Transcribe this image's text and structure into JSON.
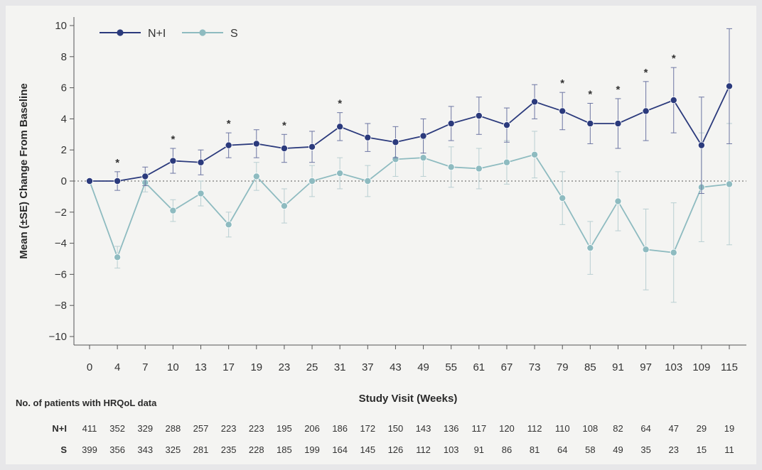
{
  "chart_data": {
    "type": "line",
    "xlabel": "Study Visit (Weeks)",
    "ylabel": "Mean (±SE) Change From Baseline",
    "ylim": [
      -10,
      10
    ],
    "yticks": [
      10,
      8,
      6,
      4,
      2,
      0,
      -2,
      -4,
      -6,
      -8,
      -10
    ],
    "categories": [
      "0",
      "4",
      "7",
      "10",
      "13",
      "17",
      "19",
      "23",
      "25",
      "31",
      "37",
      "43",
      "49",
      "55",
      "61",
      "67",
      "73",
      "79",
      "85",
      "91",
      "97",
      "103",
      "109",
      "115"
    ],
    "legend_position": "top-left",
    "reference_line": 0,
    "significance_marker": "*",
    "significant_at": [
      "4",
      "10",
      "17",
      "23",
      "31",
      "79",
      "85",
      "91",
      "97",
      "103"
    ],
    "series": [
      {
        "name": "N+I",
        "color": "#2b3a7c",
        "values": [
          0.0,
          0.0,
          0.3,
          1.3,
          1.2,
          2.3,
          2.4,
          2.1,
          2.2,
          3.5,
          2.8,
          2.5,
          2.9,
          3.7,
          4.2,
          3.6,
          5.1,
          4.5,
          3.7,
          3.7,
          4.5,
          5.2,
          2.3,
          6.1
        ],
        "se": [
          0.0,
          0.6,
          0.6,
          0.8,
          0.8,
          0.8,
          0.9,
          0.9,
          1.0,
          0.9,
          0.9,
          1.0,
          1.1,
          1.1,
          1.2,
          1.1,
          1.1,
          1.2,
          1.3,
          1.6,
          1.9,
          2.1,
          3.1,
          3.7
        ]
      },
      {
        "name": "S",
        "color": "#8ebbc0",
        "values": [
          0.0,
          -4.9,
          -0.1,
          -1.9,
          -0.8,
          -2.8,
          0.3,
          -1.6,
          0.0,
          0.5,
          0.0,
          1.4,
          1.5,
          0.9,
          0.8,
          1.2,
          1.7,
          -1.1,
          -4.3,
          -1.3,
          -4.4,
          -4.6,
          -0.4,
          -0.2
        ],
        "se": [
          0.0,
          0.7,
          0.6,
          0.7,
          0.8,
          0.8,
          0.9,
          1.1,
          1.0,
          1.0,
          1.0,
          1.1,
          1.2,
          1.3,
          1.3,
          1.4,
          1.5,
          1.7,
          1.7,
          1.9,
          2.6,
          3.2,
          3.5,
          3.9
        ]
      }
    ]
  },
  "table": {
    "title": "No. of patients with HRQoL data",
    "rows": [
      {
        "name": "N+I",
        "values": [
          "411",
          "352",
          "329",
          "288",
          "257",
          "223",
          "223",
          "195",
          "206",
          "186",
          "172",
          "150",
          "143",
          "136",
          "117",
          "120",
          "112",
          "110",
          "108",
          "82",
          "64",
          "47",
          "29",
          "19"
        ]
      },
      {
        "name": "S",
        "values": [
          "399",
          "356",
          "343",
          "325",
          "281",
          "235",
          "228",
          "185",
          "199",
          "164",
          "145",
          "126",
          "112",
          "103",
          "91",
          "86",
          "81",
          "64",
          "58",
          "49",
          "35",
          "23",
          "15",
          "11"
        ]
      }
    ]
  }
}
